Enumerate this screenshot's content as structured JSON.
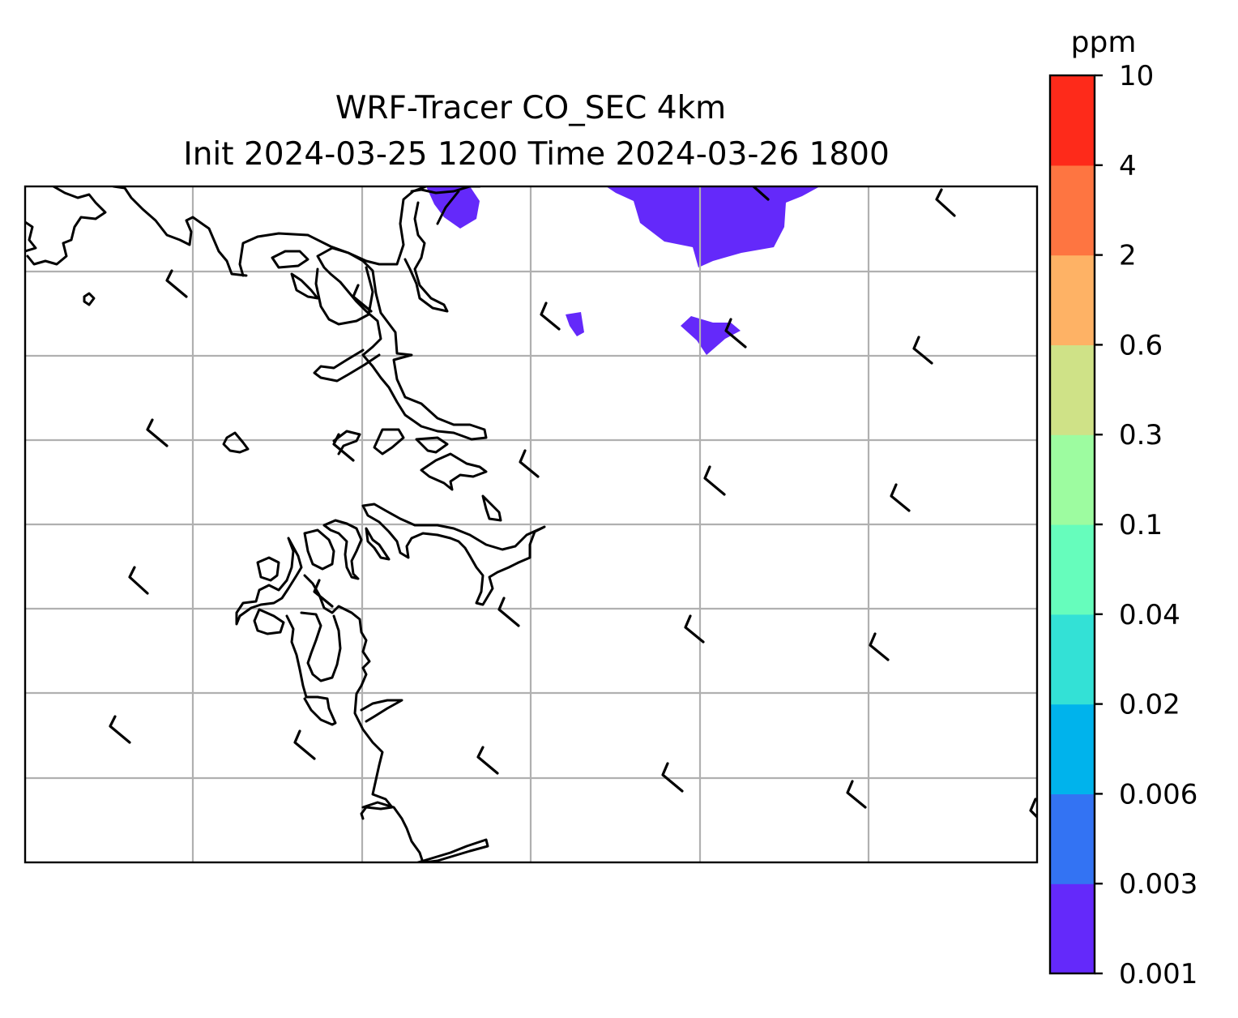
{
  "title": {
    "line1": "WRF-Tracer CO_SEC 4km",
    "line2": "Init 2024-03-25 1200 Time 2024-03-26 1800"
  },
  "colorbar": {
    "unit": "ppm",
    "ticks": [
      "0.001",
      "0.003",
      "0.006",
      "0.02",
      "0.04",
      "0.1",
      "0.3",
      "0.6",
      "2",
      "4",
      "10"
    ],
    "colors": [
      "#6429fa",
      "#3373f3",
      "#00b3ec",
      "#33e1d6",
      "#66fdbc",
      "#9dfca0",
      "#cfe287",
      "#feb265",
      "#fe7541",
      "#fe2a1a"
    ]
  },
  "map": {
    "plume_color": "#6429fa",
    "plume_level": "0.001–0.003 ppm",
    "gridlines": true,
    "coastline_color": "#000000"
  }
}
